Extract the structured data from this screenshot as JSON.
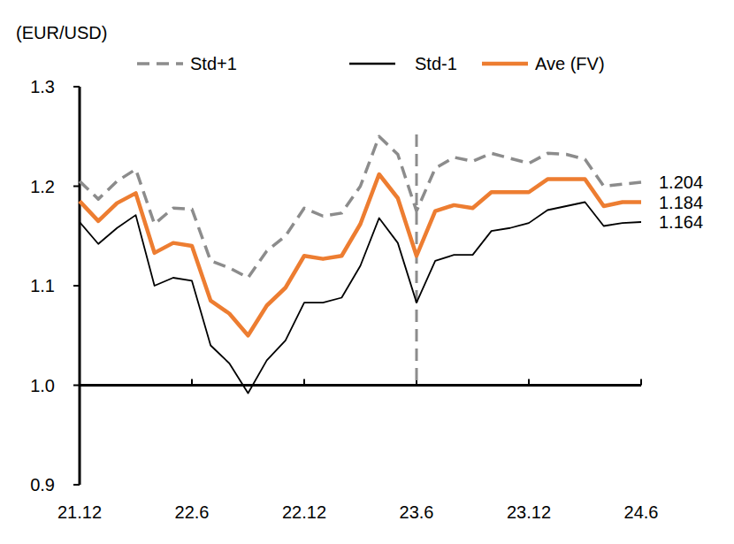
{
  "chart_data": {
    "type": "line",
    "y_label": "(EUR/USD)",
    "categories": [
      "21.12",
      null,
      null,
      null,
      null,
      null,
      "22.6",
      null,
      null,
      null,
      null,
      null,
      "22.12",
      null,
      null,
      null,
      null,
      null,
      "23.6",
      null,
      null,
      null,
      null,
      null,
      "23.12",
      null,
      null,
      null,
      null,
      null,
      "24.6"
    ],
    "series": [
      {
        "name": "Std+1",
        "color": "#8c8c8c",
        "line_style": "dashed",
        "values": [
          1.205,
          1.187,
          1.205,
          1.217,
          1.162,
          1.178,
          1.177,
          1.125,
          1.118,
          1.108,
          1.135,
          1.15,
          1.178,
          1.17,
          1.173,
          1.2,
          1.25,
          1.232,
          1.175,
          1.218,
          1.229,
          1.225,
          1.233,
          1.228,
          1.223,
          1.233,
          1.232,
          1.227,
          1.2,
          1.202,
          1.204
        ]
      },
      {
        "name": "Std-1",
        "color": "#000000",
        "line_style": "solid",
        "values": [
          1.164,
          1.142,
          1.158,
          1.171,
          1.1,
          1.108,
          1.105,
          1.04,
          1.022,
          0.992,
          1.025,
          1.045,
          1.083,
          1.083,
          1.088,
          1.12,
          1.168,
          1.143,
          1.083,
          1.125,
          1.131,
          1.131,
          1.155,
          1.158,
          1.163,
          1.176,
          1.18,
          1.184,
          1.16,
          1.163,
          1.164
        ]
      },
      {
        "name": "Ave (FV)",
        "color": "#ed7d31",
        "line_style": "solid",
        "values": [
          1.185,
          1.165,
          1.183,
          1.193,
          1.133,
          1.143,
          1.14,
          1.085,
          1.072,
          1.05,
          1.08,
          1.098,
          1.13,
          1.127,
          1.13,
          1.162,
          1.212,
          1.188,
          1.13,
          1.175,
          1.181,
          1.178,
          1.194,
          1.194,
          1.194,
          1.207,
          1.207,
          1.207,
          1.18,
          1.184,
          1.184
        ]
      }
    ],
    "ylim": [
      0.9,
      1.3
    ],
    "yticks": [
      0.9,
      1.0,
      1.1,
      1.2,
      1.3
    ],
    "baseline": 1,
    "grid": false,
    "legend": "top",
    "annotations": [
      {
        "label": "1.204",
        "x": "24.6",
        "y": 1.204
      },
      {
        "label": "1.184",
        "x": "24.6",
        "y": 1.184
      },
      {
        "label": "1.164",
        "x": "24.6",
        "y": 1.164
      },
      {
        "type": "vline",
        "x": "23.6",
        "color": "#8c8c8c",
        "line_style": "dashed"
      }
    ]
  }
}
